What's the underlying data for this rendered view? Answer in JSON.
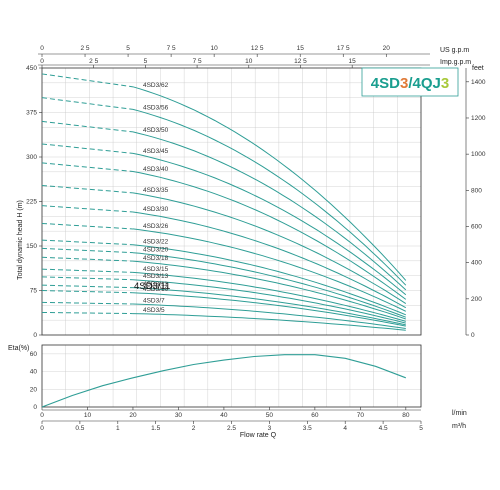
{
  "chart_data": [
    {
      "type": "line",
      "title": "4SD3/4QJ3",
      "title_parts": [
        {
          "text": "4SD",
          "color": "#1a9e8f"
        },
        {
          "text": "3",
          "color": "#e07b39"
        },
        {
          "text": "/4QJ",
          "color": "#1a9e8f"
        },
        {
          "text": "3",
          "color": "#a8c93a"
        }
      ],
      "ylabel": "Total dynamic head H (m)",
      "ylabel_right": "feet",
      "xlabel": "Flow rate Q",
      "ylim": [
        0,
        450
      ],
      "xlim_m3h": [
        0,
        5.0
      ],
      "y_ticks": [
        0,
        75,
        150,
        225,
        300,
        375,
        450
      ],
      "y_ticks_right": [
        0,
        200,
        400,
        600,
        800,
        1000,
        1200,
        1400
      ],
      "x_top_us_label": "US g.p.m",
      "x_top_us_ticks": [
        0,
        2.5,
        5,
        7.5,
        10,
        12.5,
        15,
        17.5,
        20
      ],
      "x_top_us_tick_labels": [
        "0",
        "2 5",
        "5",
        "7 5",
        "10",
        "12 5",
        "15",
        "17 5",
        "20"
      ],
      "x_top_imp_label": "Imp.g.p.m",
      "x_top_imp_ticks": [
        0,
        2.5,
        5,
        7.5,
        10,
        12.5,
        15
      ],
      "x_top_imp_tick_labels": [
        "0",
        "2 5",
        "5",
        "7 5",
        "10",
        "12 5",
        "15"
      ],
      "dashed_until_m3h": 1.2,
      "curve_end_m3h": 4.8,
      "series": [
        {
          "name": "4SD3/62",
          "h0": 440,
          "h_end": 92
        },
        {
          "name": "4SD3/56",
          "h0": 400,
          "h_end": 84
        },
        {
          "name": "4SD3/50",
          "h0": 360,
          "h_end": 76
        },
        {
          "name": "4SD3/45",
          "h0": 322,
          "h_end": 68
        },
        {
          "name": "4SD3/40",
          "h0": 290,
          "h_end": 60
        },
        {
          "name": "4SD3/35",
          "h0": 252,
          "h_end": 53
        },
        {
          "name": "4SD3/30",
          "h0": 218,
          "h_end": 46
        },
        {
          "name": "4SD3/26",
          "h0": 188,
          "h_end": 40
        },
        {
          "name": "4SD3/22",
          "h0": 160,
          "h_end": 34
        },
        {
          "name": "4SD3/20",
          "h0": 146,
          "h_end": 30
        },
        {
          "name": "4SD3/18",
          "h0": 131,
          "h_end": 27
        },
        {
          "name": "4SD3/15",
          "h0": 111,
          "h_end": 23
        },
        {
          "name": "4SD3/13",
          "h0": 98,
          "h_end": 20
        },
        {
          "name": "4SD3/11",
          "h0": 84,
          "h_end": 17
        },
        {
          "name": "4SD3/10",
          "h0": 75,
          "h_end": 15
        },
        {
          "name": "4SD3/7",
          "h0": 55,
          "h_end": 11
        },
        {
          "name": "4SD3/5",
          "h0": 38,
          "h_end": 8
        }
      ],
      "label_overlay": "4SD3/11"
    },
    {
      "type": "line",
      "ylabel": "Eta(%)",
      "ylim": [
        0,
        70
      ],
      "y_ticks": [
        0,
        20,
        40,
        60
      ],
      "x_ticks_lmin": [
        0,
        10,
        20,
        30,
        40,
        50,
        60,
        70,
        80
      ],
      "x_unit_lmin": "l/min",
      "x_ticks_m3h": [
        0,
        0.5,
        1,
        1.5,
        2,
        2.5,
        3,
        3.5,
        4,
        4.5,
        5
      ],
      "x_tick_labels_m3h": [
        "0",
        "0.5",
        "1",
        "1.5",
        "2",
        "2.5",
        "3",
        "3.5",
        "4",
        "4.5",
        "5"
      ],
      "x_unit_m3h": "m³/h",
      "xlabel": "Flow rate Q",
      "series": [
        {
          "x_m3h": [
            0,
            0.4,
            0.8,
            1.2,
            1.6,
            2.0,
            2.4,
            2.8,
            3.2,
            3.6,
            4.0,
            4.4,
            4.8
          ],
          "values": [
            0,
            13,
            24,
            33,
            41,
            48,
            53,
            57,
            59,
            59,
            55,
            46,
            33
          ]
        }
      ]
    }
  ],
  "colors": {
    "curve": "#2f9e96",
    "grid": "#c8c8c8",
    "axis": "#333333",
    "title_border": "#2f9e96"
  }
}
